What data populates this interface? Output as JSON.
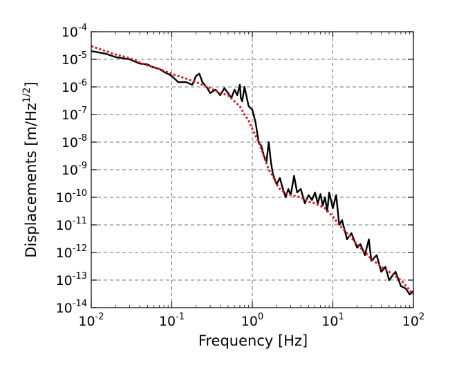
{
  "chart_data": {
    "type": "line",
    "xscale": "log",
    "yscale": "log",
    "xlim": [
      0.01,
      100
    ],
    "ylim": [
      1e-14,
      0.0001
    ],
    "grid": true,
    "xlabel": "Frequency [Hz]",
    "ylabel": "Displacements [m/Hz",
    "ylabel_sup": "1/2",
    "ylabel_close": "]",
    "x_ticks": [
      {
        "base": "10",
        "exp": "-2",
        "value": 0.01
      },
      {
        "base": "10",
        "exp": "-1",
        "value": 0.1
      },
      {
        "base": "10",
        "exp": "0",
        "value": 1
      },
      {
        "base": "10",
        "exp": "1",
        "value": 10
      },
      {
        "base": "10",
        "exp": "2",
        "value": 100
      }
    ],
    "y_ticks": [
      {
        "base": "10",
        "exp": "-14",
        "value": 1e-14
      },
      {
        "base": "10",
        "exp": "-13",
        "value": 1e-13
      },
      {
        "base": "10",
        "exp": "-12",
        "value": 1e-12
      },
      {
        "base": "10",
        "exp": "-11",
        "value": 1e-11
      },
      {
        "base": "10",
        "exp": "-10",
        "value": 1e-10
      },
      {
        "base": "10",
        "exp": "-9",
        "value": 1e-09
      },
      {
        "base": "10",
        "exp": "-8",
        "value": 1e-08
      },
      {
        "base": "10",
        "exp": "-7",
        "value": 1e-07
      },
      {
        "base": "10",
        "exp": "-6",
        "value": 1e-06
      },
      {
        "base": "10",
        "exp": "-5",
        "value": 1e-05
      },
      {
        "base": "10",
        "exp": "-4",
        "value": 0.0001
      }
    ],
    "series": [
      {
        "style": "solid",
        "color": "#000000",
        "x": [
          0.01,
          0.015,
          0.02,
          0.03,
          0.04,
          0.05,
          0.06,
          0.07,
          0.08,
          0.1,
          0.12,
          0.15,
          0.18,
          0.2,
          0.22,
          0.24,
          0.27,
          0.3,
          0.35,
          0.4,
          0.45,
          0.5,
          0.55,
          0.6,
          0.65,
          0.7,
          0.72,
          0.75,
          0.8,
          0.9,
          1.0,
          1.1,
          1.2,
          1.3,
          1.4,
          1.5,
          1.6,
          1.7,
          1.8,
          2.0,
          2.2,
          2.4,
          2.6,
          2.8,
          3.0,
          3.3,
          3.6,
          4.0,
          4.5,
          5.0,
          5.5,
          6.0,
          6.5,
          7.0,
          7.5,
          8.0,
          8.5,
          9.0,
          10.0,
          11.0,
          12.0,
          13.0,
          15.0,
          17.0,
          20.0,
          22.0,
          25.0,
          28.0,
          30.0,
          35.0,
          40.0,
          45.0,
          50.0,
          60.0,
          70.0,
          80.0,
          90.0,
          100.0
        ],
        "y": [
          2e-05,
          1.6e-05,
          1.2e-05,
          1e-05,
          7e-06,
          6.5e-06,
          5e-06,
          4.5e-06,
          3.5e-06,
          2.5e-06,
          1.5e-06,
          1.5e-06,
          1.2e-06,
          2.5e-06,
          3e-06,
          1.5e-06,
          1e-06,
          6e-07,
          8e-07,
          5e-07,
          9e-07,
          6e-07,
          4e-07,
          8e-07,
          5e-07,
          1.2e-06,
          4e-07,
          3e-07,
          1e-06,
          2e-07,
          1.5e-07,
          5e-08,
          1e-08,
          7e-09,
          3e-09,
          2e-09,
          1e-08,
          2e-09,
          7e-10,
          3e-10,
          5e-10,
          2e-10,
          1e-10,
          2e-10,
          1.2e-10,
          6e-10,
          1.5e-10,
          2e-10,
          6e-11,
          1.2e-10,
          8e-11,
          1.5e-10,
          6e-11,
          1.3e-10,
          5e-11,
          1e-10,
          3e-11,
          1.5e-10,
          4e-11,
          1.2e-10,
          1e-11,
          1.5e-11,
          3e-12,
          5e-12,
          1.5e-12,
          2e-12,
          8e-13,
          3e-12,
          5e-13,
          8e-13,
          2e-13,
          3e-13,
          1e-13,
          2e-13,
          6e-14,
          5e-14,
          3e-14,
          4e-14
        ]
      },
      {
        "style": "dotted",
        "color": "#e0181b",
        "x": [
          0.01,
          0.02,
          0.03,
          0.05,
          0.07,
          0.1,
          0.15,
          0.2,
          0.3,
          0.4,
          0.5,
          0.6,
          0.7,
          0.8,
          0.9,
          1.0,
          1.2,
          1.4,
          1.6,
          1.8,
          2.0,
          2.2,
          2.5,
          3.0,
          4.0,
          5.0,
          6.0,
          8.0,
          10.0,
          12.0,
          15.0,
          20.0,
          25.0,
          30.0,
          40.0,
          50.0,
          70.0,
          100.0
        ],
        "y": [
          3e-05,
          1.5e-05,
          1.1e-05,
          6e-06,
          4.5e-06,
          3e-06,
          2e-06,
          1.5e-06,
          9e-07,
          6e-07,
          5e-07,
          3e-07,
          2e-07,
          1e-07,
          6e-08,
          3e-08,
          1e-08,
          3e-09,
          1e-09,
          6e-10,
          3e-10,
          2e-10,
          1.5e-10,
          1.2e-10,
          1e-10,
          7e-11,
          6e-11,
          4e-11,
          2e-11,
          1e-11,
          5e-12,
          2e-12,
          1e-12,
          6e-13,
          3e-13,
          2e-13,
          1e-13,
          3e-14
        ]
      }
    ]
  }
}
